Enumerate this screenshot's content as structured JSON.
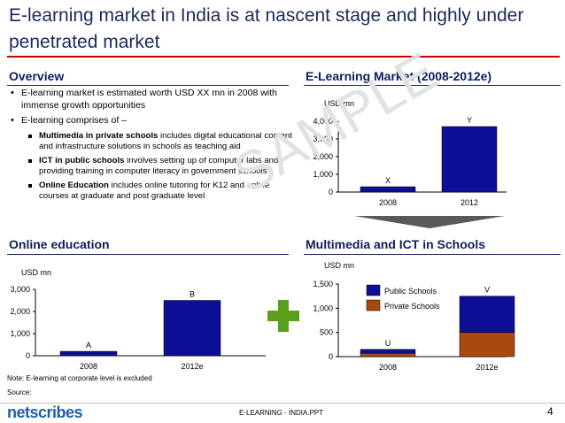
{
  "title": "E-learning market in India is at nascent stage and highly under penetrated market",
  "overview": {
    "heading": "Overview",
    "bullet1": "E-learning market is estimated worth USD XX mn in 2008 with immense growth opportunities",
    "bullet2": "E-learning comprises of –",
    "sub1_bold": "Multimedia in private schools",
    "sub1_rest": " includes digital educational content and infrastructure solutions in schools as teaching aid",
    "sub2_bold": "ICT in public schools",
    "sub2_rest": " involves setting up of computer labs and providing training in computer literacy in government schools",
    "sub3_bold": "Online Education",
    "sub3_rest": " includes online tutoring for K12 and online courses at graduate and post graduate level"
  },
  "market_heading": "E-Learning Market (2008-2012e)",
  "online_heading": "Online education",
  "multimedia_heading": "Multimedia and ICT in Schools",
  "watermark": "SAMPLE",
  "chart_data": [
    {
      "type": "bar",
      "unit": "USD mn",
      "categories": [
        "2008",
        "2012"
      ],
      "values": [
        300,
        3700
      ],
      "data_labels": [
        "X",
        "Y"
      ],
      "yticks": [
        "0",
        "1,000",
        "2,000",
        "3,000",
        "4,000"
      ],
      "ylim": [
        0,
        4000
      ],
      "color": "#0d0f96"
    },
    {
      "type": "bar",
      "unit": "USD mn",
      "categories": [
        "2008",
        "2012e"
      ],
      "values": [
        200,
        2500
      ],
      "data_labels": [
        "A",
        "B"
      ],
      "yticks": [
        "0",
        "1,000",
        "2,000",
        "3,000"
      ],
      "ylim": [
        0,
        3000
      ],
      "color": "#0d0f96"
    },
    {
      "type": "bar",
      "stacked": true,
      "unit": "USD mn",
      "categories": [
        "2008",
        "2012e"
      ],
      "series": [
        {
          "name": "Public Schools",
          "values": [
            80,
            750
          ],
          "color": "#0d0f96"
        },
        {
          "name": "Private Schools",
          "values": [
            70,
            500
          ],
          "color": "#a84a10"
        }
      ],
      "data_labels": [
        "U",
        "V"
      ],
      "yticks": [
        "0",
        "500",
        "1,000",
        "1,500"
      ],
      "ylim": [
        0,
        1500
      ],
      "legend": "top-right"
    }
  ],
  "notes": {
    "note": "Note: E-learning at corporate level is excluded",
    "source": "Source:"
  },
  "footer": {
    "logo": "netscribes",
    "center": "E-LEARNING - INDIA.PPT",
    "page": "4"
  }
}
